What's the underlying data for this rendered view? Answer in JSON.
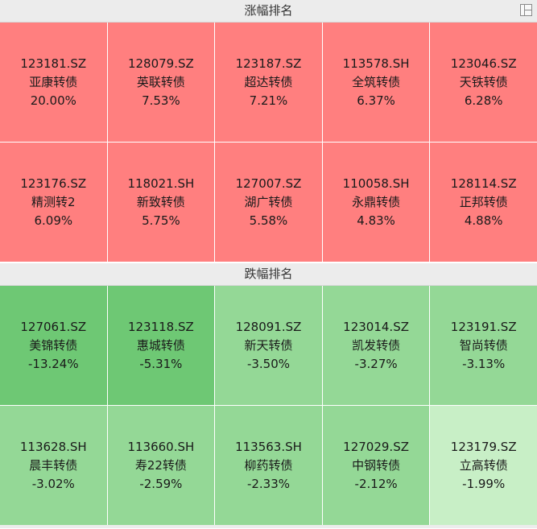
{
  "gainers": {
    "title": "涨幅排名",
    "items": [
      {
        "code": "123181.SZ",
        "name": "亚康转债",
        "change": "20.00%",
        "color": "#ff7f7f"
      },
      {
        "code": "128079.SZ",
        "name": "英联转债",
        "change": "7.53%",
        "color": "#ff7f7f"
      },
      {
        "code": "123187.SZ",
        "name": "超达转债",
        "change": "7.21%",
        "color": "#ff7f7f"
      },
      {
        "code": "113578.SH",
        "name": "全筑转债",
        "change": "6.37%",
        "color": "#ff7f7f"
      },
      {
        "code": "123046.SZ",
        "name": "天铁转债",
        "change": "6.28%",
        "color": "#ff7f7f"
      },
      {
        "code": "123176.SZ",
        "name": "精测转2",
        "change": "6.09%",
        "color": "#ff7f7f"
      },
      {
        "code": "118021.SH",
        "name": "新致转债",
        "change": "5.75%",
        "color": "#ff7f7f"
      },
      {
        "code": "127007.SZ",
        "name": "湖广转债",
        "change": "5.58%",
        "color": "#ff7f7f"
      },
      {
        "code": "110058.SH",
        "name": "永鼎转债",
        "change": "4.83%",
        "color": "#ff7f7f"
      },
      {
        "code": "128114.SZ",
        "name": "正邦转债",
        "change": "4.88%",
        "color": "#ff7f7f"
      }
    ]
  },
  "losers": {
    "title": "跌幅排名",
    "items": [
      {
        "code": "127061.SZ",
        "name": "美锦转债",
        "change": "-13.24%",
        "color": "#6ec874"
      },
      {
        "code": "123118.SZ",
        "name": "惠城转债",
        "change": "-5.31%",
        "color": "#6ec874"
      },
      {
        "code": "128091.SZ",
        "name": "新天转债",
        "change": "-3.50%",
        "color": "#94d896"
      },
      {
        "code": "123014.SZ",
        "name": "凯发转债",
        "change": "-3.27%",
        "color": "#94d896"
      },
      {
        "code": "123191.SZ",
        "name": "智尚转债",
        "change": "-3.13%",
        "color": "#94d896"
      },
      {
        "code": "113628.SH",
        "name": "晨丰转债",
        "change": "-3.02%",
        "color": "#94d896"
      },
      {
        "code": "113660.SH",
        "name": "寿22转债",
        "change": "-2.59%",
        "color": "#94d896"
      },
      {
        "code": "113563.SH",
        "name": "柳药转债",
        "change": "-2.33%",
        "color": "#94d896"
      },
      {
        "code": "127029.SZ",
        "name": "中钢转债",
        "change": "-2.12%",
        "color": "#94d896"
      },
      {
        "code": "123179.SZ",
        "name": "立高转债",
        "change": "-1.99%",
        "color": "#c8efc6"
      }
    ]
  },
  "icons": {
    "header_right": "layout-panel-icon"
  }
}
